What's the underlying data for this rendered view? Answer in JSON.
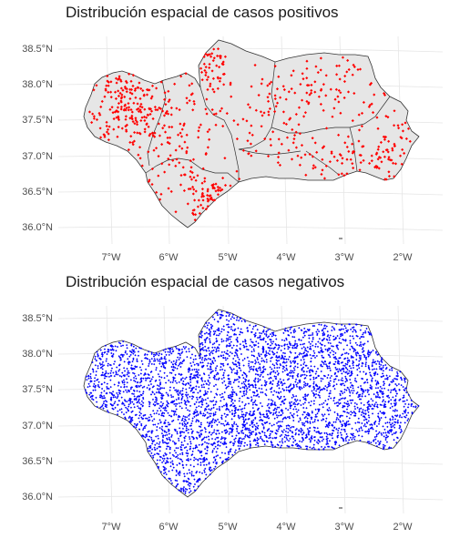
{
  "panels": [
    {
      "title": "Distribución espacial de casos positivos",
      "point_color": "#ff0000",
      "fill_color": "#e6e6e6",
      "border_color": "#333333",
      "show_provinces": true,
      "lat_ticks": [
        "38.5°N",
        "38.0°N",
        "37.5°N",
        "37.0°N",
        "36.5°N",
        "36.0°N"
      ],
      "lon_ticks": [
        "7°W",
        "6°W",
        "5°W",
        "4°W",
        "3°W",
        "2°W"
      ]
    },
    {
      "title": "Distribución espacial de casos negativos",
      "point_color": "#0000ff",
      "fill_color": "#ffffff",
      "border_color": "#333333",
      "show_provinces": false,
      "lat_ticks": [
        "38.5°N",
        "38.0°N",
        "37.5°N",
        "37.0°N",
        "36.5°N",
        "36.0°N"
      ],
      "lon_ticks": [
        "7°W",
        "6°W",
        "5°W",
        "4°W",
        "3°W",
        "2°W"
      ]
    }
  ]
}
